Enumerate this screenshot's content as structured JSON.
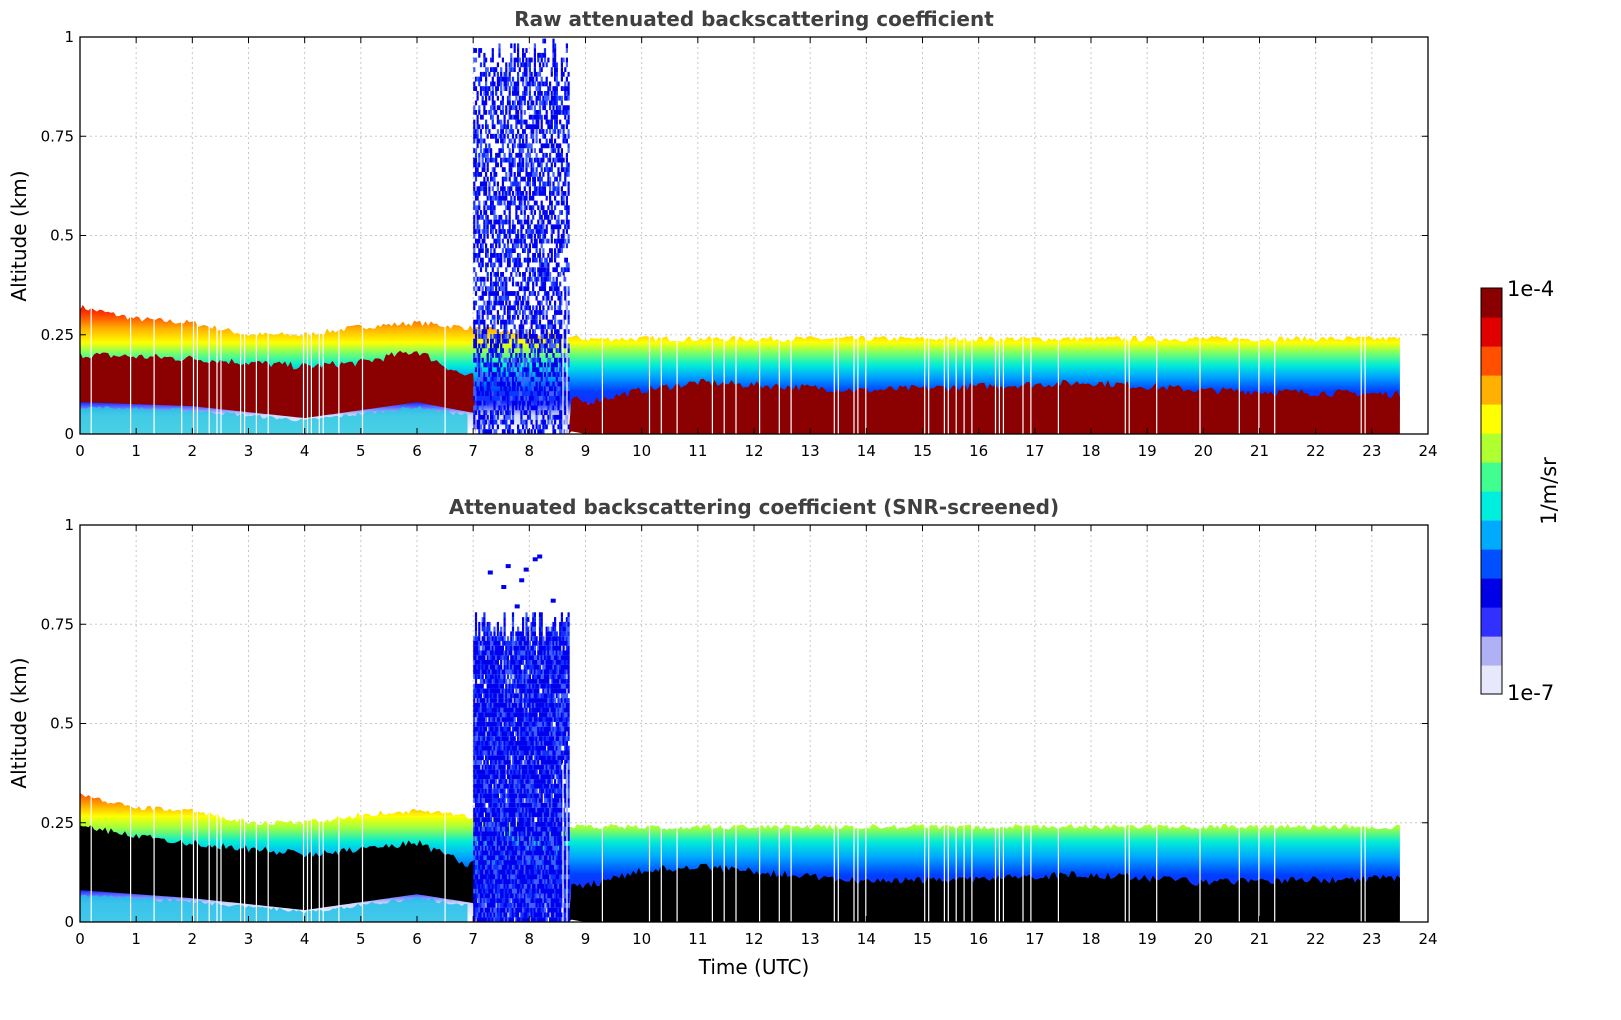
{
  "chart_data": [
    {
      "type": "heatmap",
      "title": "Raw attenuated backscattering coefficient",
      "xlabel": "",
      "ylabel": "Altitude (km)",
      "xlim": [
        0,
        24
      ],
      "ylim": [
        0,
        1
      ],
      "x_ticks": [
        "0",
        "1",
        "2",
        "3",
        "4",
        "5",
        "6",
        "7",
        "8",
        "9",
        "10",
        "11",
        "12",
        "13",
        "14",
        "15",
        "16",
        "17",
        "18",
        "19",
        "20",
        "21",
        "22",
        "23",
        "24"
      ],
      "y_ticks": [
        "0",
        "0.25",
        "0.5",
        "0.75",
        "1"
      ],
      "grid": true,
      "data_end_time": 23.5,
      "layer_top_km": [
        [
          0,
          0.32
        ],
        [
          1,
          0.29
        ],
        [
          2,
          0.28
        ],
        [
          3,
          0.25
        ],
        [
          4,
          0.25
        ],
        [
          5,
          0.27
        ],
        [
          6,
          0.28
        ],
        [
          9,
          0.24
        ],
        [
          12,
          0.24
        ],
        [
          16,
          0.24
        ],
        [
          20,
          0.24
        ],
        [
          23.5,
          0.24
        ]
      ],
      "saturated_top_km": [
        [
          0,
          0.2
        ],
        [
          2,
          0.19
        ],
        [
          4,
          0.17
        ],
        [
          5,
          0.18
        ],
        [
          6,
          0.21
        ],
        [
          6.8,
          0.15
        ],
        [
          9,
          0.08
        ],
        [
          10,
          0.11
        ],
        [
          11,
          0.13
        ],
        [
          14,
          0.11
        ],
        [
          18,
          0.13
        ],
        [
          20,
          0.11
        ],
        [
          23.5,
          0.1
        ]
      ],
      "saturated_bottom_km": [
        [
          0,
          0.08
        ],
        [
          2,
          0.07
        ],
        [
          4,
          0.04
        ],
        [
          5,
          0.06
        ],
        [
          6,
          0.08
        ],
        [
          9,
          0
        ],
        [
          23.5,
          0
        ]
      ],
      "aerosol_plume": {
        "start": 7.0,
        "end": 8.7,
        "top_km": 1.0
      }
    },
    {
      "type": "heatmap",
      "title": "Attenuated backscattering coefficient (SNR-screened)",
      "xlabel": "Time (UTC)",
      "ylabel": "Altitude (km)",
      "xlim": [
        0,
        24
      ],
      "ylim": [
        0,
        1
      ],
      "x_ticks": [
        "0",
        "1",
        "2",
        "3",
        "4",
        "5",
        "6",
        "7",
        "8",
        "9",
        "10",
        "11",
        "12",
        "13",
        "14",
        "15",
        "16",
        "17",
        "18",
        "19",
        "20",
        "21",
        "22",
        "23",
        "24"
      ],
      "y_ticks": [
        "0",
        "0.25",
        "0.5",
        "0.75",
        "1"
      ],
      "grid": true,
      "data_end_time": 23.5,
      "layer_top_km": [
        [
          0,
          0.32
        ],
        [
          1,
          0.29
        ],
        [
          2,
          0.28
        ],
        [
          3,
          0.25
        ],
        [
          4,
          0.25
        ],
        [
          5,
          0.27
        ],
        [
          6,
          0.28
        ],
        [
          9,
          0.24
        ],
        [
          12,
          0.24
        ],
        [
          16,
          0.24
        ],
        [
          20,
          0.24
        ],
        [
          23.5,
          0.24
        ]
      ],
      "screened_top_km": [
        [
          0,
          0.24
        ],
        [
          2,
          0.2
        ],
        [
          4,
          0.17
        ],
        [
          5,
          0.18
        ],
        [
          6,
          0.2
        ],
        [
          6.8,
          0.15
        ],
        [
          9,
          0.09
        ],
        [
          10,
          0.13
        ],
        [
          11,
          0.14
        ],
        [
          14,
          0.1
        ],
        [
          18,
          0.12
        ],
        [
          20,
          0.1
        ],
        [
          23.5,
          0.11
        ]
      ],
      "aerosol_plume": {
        "start": 7.0,
        "end": 8.7,
        "top_km": 0.78,
        "sparse_top_km": 0.93
      }
    }
  ],
  "colorbar": {
    "label": "1/m/sr",
    "max_label": "1e-4",
    "min_label": "1e-7",
    "colormap": [
      "#e8e8fc",
      "#b0b0f4",
      "#3030ff",
      "#0000e6",
      "#0050ff",
      "#00aaff",
      "#00eedd",
      "#40ff90",
      "#b0ff30",
      "#ffff00",
      "#ffb000",
      "#ff5000",
      "#e00000",
      "#8a0000"
    ]
  }
}
